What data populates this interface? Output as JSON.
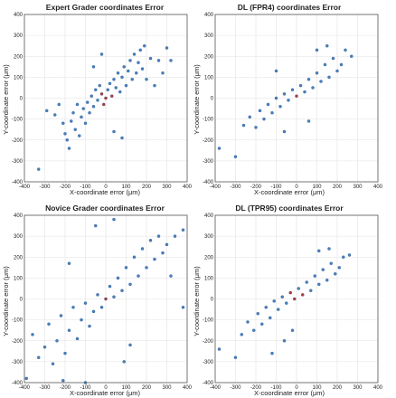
{
  "figure": {
    "colors": {
      "point": "#4a7fc1",
      "point_dense_core": "#b23a3a",
      "grid": "#e2e2e2",
      "frame": "#555555"
    }
  },
  "chart_data": [
    {
      "type": "scatter",
      "title": "Expert Grader coordinates Error",
      "xlabel": "X-coordinate error (μm)",
      "ylabel": "Y-coordinate error (μm)",
      "xlim": [
        -400,
        400
      ],
      "ylim": [
        -400,
        400
      ],
      "xticks": [
        "-400",
        "-300",
        "-200",
        "-100",
        "0",
        "100",
        "200",
        "300",
        "400"
      ],
      "yticks": [
        "-400",
        "-300",
        "-200",
        "-100",
        "0",
        "100",
        "200",
        "300",
        "400"
      ],
      "grid": true,
      "points": [
        [
          -330,
          -340
        ],
        [
          -290,
          -60
        ],
        [
          -210,
          -120
        ],
        [
          -200,
          -170
        ],
        [
          -190,
          -200
        ],
        [
          -180,
          -240
        ],
        [
          -170,
          -110
        ],
        [
          -160,
          -70
        ],
        [
          -150,
          -150
        ],
        [
          -140,
          -30
        ],
        [
          -130,
          -180
        ],
        [
          -120,
          -90
        ],
        [
          -110,
          -50
        ],
        [
          -100,
          -120
        ],
        [
          -90,
          -20
        ],
        [
          -80,
          -70
        ],
        [
          -70,
          10
        ],
        [
          -60,
          -40
        ],
        [
          -50,
          40
        ],
        [
          -40,
          -10
        ],
        [
          -30,
          60
        ],
        [
          -20,
          20
        ],
        [
          -10,
          -30
        ],
        [
          0,
          0
        ],
        [
          10,
          40
        ],
        [
          20,
          70
        ],
        [
          30,
          10
        ],
        [
          40,
          90
        ],
        [
          50,
          50
        ],
        [
          60,
          120
        ],
        [
          70,
          30
        ],
        [
          80,
          100
        ],
        [
          90,
          150
        ],
        [
          100,
          60
        ],
        [
          110,
          130
        ],
        [
          120,
          180
        ],
        [
          130,
          90
        ],
        [
          140,
          210
        ],
        [
          150,
          120
        ],
        [
          160,
          170
        ],
        [
          170,
          230
        ],
        [
          180,
          140
        ],
        [
          190,
          250
        ],
        [
          200,
          90
        ],
        [
          220,
          190
        ],
        [
          240,
          60
        ],
        [
          260,
          180
        ],
        [
          280,
          120
        ],
        [
          300,
          240
        ],
        [
          320,
          180
        ],
        [
          -250,
          -80
        ],
        [
          -230,
          -30
        ],
        [
          -60,
          150
        ],
        [
          -20,
          210
        ],
        [
          40,
          -160
        ],
        [
          80,
          -190
        ]
      ]
    },
    {
      "type": "scatter",
      "title": "DL (FPR4) coordinates Error",
      "xlabel": "X-coordinate error (μm)",
      "ylabel": "Y-coordinate error (μm)",
      "xlim": [
        -400,
        400
      ],
      "ylim": [
        -400,
        400
      ],
      "xticks": [
        "-400",
        "-300",
        "-200",
        "-100",
        "0",
        "100",
        "200",
        "300",
        "400"
      ],
      "yticks": [
        "-400",
        "-300",
        "-200",
        "-100",
        "0",
        "100",
        "200",
        "300",
        "400"
      ],
      "grid": true,
      "points": [
        [
          -380,
          -240
        ],
        [
          -300,
          -280
        ],
        [
          -260,
          -130
        ],
        [
          -230,
          -90
        ],
        [
          -200,
          -140
        ],
        [
          -180,
          -60
        ],
        [
          -160,
          -100
        ],
        [
          -140,
          -30
        ],
        [
          -120,
          -70
        ],
        [
          -100,
          0
        ],
        [
          -80,
          -40
        ],
        [
          -60,
          20
        ],
        [
          -40,
          -10
        ],
        [
          -20,
          40
        ],
        [
          0,
          10
        ],
        [
          20,
          60
        ],
        [
          40,
          30
        ],
        [
          60,
          90
        ],
        [
          80,
          50
        ],
        [
          100,
          120
        ],
        [
          120,
          80
        ],
        [
          140,
          160
        ],
        [
          160,
          100
        ],
        [
          180,
          190
        ],
        [
          200,
          130
        ],
        [
          220,
          160
        ],
        [
          240,
          230
        ],
        [
          270,
          200
        ],
        [
          -100,
          130
        ],
        [
          60,
          -110
        ],
        [
          -60,
          -160
        ],
        [
          150,
          250
        ],
        [
          100,
          230
        ]
      ]
    },
    {
      "type": "scatter",
      "title": "Novice Grader coordinates Error",
      "xlabel": "X-coordinate error (μm)",
      "ylabel": "Y-coordinate error (μm)",
      "xlim": [
        -400,
        400
      ],
      "ylim": [
        -400,
        400
      ],
      "xticks": [
        "-400",
        "-300",
        "-200",
        "-100",
        "0",
        "100",
        "200",
        "300",
        "400"
      ],
      "yticks": [
        "-400",
        "-300",
        "-200",
        "-100",
        "0",
        "100",
        "200",
        "300",
        "400"
      ],
      "grid": true,
      "points": [
        [
          -390,
          -380
        ],
        [
          -360,
          -170
        ],
        [
          -330,
          -280
        ],
        [
          -300,
          -230
        ],
        [
          -280,
          -120
        ],
        [
          -260,
          -310
        ],
        [
          -240,
          -200
        ],
        [
          -220,
          -80
        ],
        [
          -200,
          -260
        ],
        [
          -180,
          -150
        ],
        [
          -160,
          -40
        ],
        [
          -140,
          -190
        ],
        [
          -120,
          -100
        ],
        [
          -100,
          -20
        ],
        [
          -80,
          -130
        ],
        [
          -60,
          -60
        ],
        [
          -40,
          20
        ],
        [
          -20,
          -40
        ],
        [
          0,
          0
        ],
        [
          20,
          60
        ],
        [
          40,
          10
        ],
        [
          60,
          100
        ],
        [
          80,
          40
        ],
        [
          100,
          150
        ],
        [
          120,
          70
        ],
        [
          140,
          200
        ],
        [
          160,
          110
        ],
        [
          180,
          240
        ],
        [
          200,
          150
        ],
        [
          220,
          280
        ],
        [
          240,
          190
        ],
        [
          260,
          300
        ],
        [
          280,
          220
        ],
        [
          300,
          260
        ],
        [
          320,
          110
        ],
        [
          340,
          300
        ],
        [
          380,
          330
        ],
        [
          -50,
          350
        ],
        [
          40,
          380
        ],
        [
          -180,
          170
        ],
        [
          120,
          -220
        ],
        [
          -210,
          -390
        ],
        [
          -100,
          -400
        ],
        [
          90,
          -300
        ],
        [
          380,
          -40
        ]
      ]
    },
    {
      "type": "scatter",
      "title": "DL (TPR95) coordinates Error",
      "xlabel": "X-coordinate error (μm)",
      "ylabel": "Y-coordinate error (μm)",
      "xlim": [
        -400,
        400
      ],
      "ylim": [
        -400,
        400
      ],
      "xticks": [
        "-400",
        "-300",
        "-200",
        "-100",
        "0",
        "100",
        "200",
        "300",
        "400"
      ],
      "yticks": [
        "-400",
        "-300",
        "-200",
        "-100",
        "0",
        "100",
        "200",
        "300",
        "400"
      ],
      "grid": true,
      "points": [
        [
          -380,
          -240
        ],
        [
          -300,
          -280
        ],
        [
          -270,
          -170
        ],
        [
          -240,
          -110
        ],
        [
          -210,
          -150
        ],
        [
          -190,
          -70
        ],
        [
          -170,
          -120
        ],
        [
          -150,
          -40
        ],
        [
          -130,
          -90
        ],
        [
          -110,
          -10
        ],
        [
          -90,
          -50
        ],
        [
          -70,
          10
        ],
        [
          -50,
          -20
        ],
        [
          -30,
          30
        ],
        [
          -10,
          0
        ],
        [
          10,
          50
        ],
        [
          30,
          20
        ],
        [
          50,
          80
        ],
        [
          70,
          40
        ],
        [
          90,
          110
        ],
        [
          110,
          70
        ],
        [
          130,
          140
        ],
        [
          150,
          90
        ],
        [
          170,
          170
        ],
        [
          190,
          120
        ],
        [
          210,
          150
        ],
        [
          230,
          200
        ],
        [
          260,
          210
        ],
        [
          -120,
          -260
        ],
        [
          -60,
          -200
        ],
        [
          -20,
          -150
        ],
        [
          110,
          230
        ],
        [
          160,
          240
        ]
      ]
    }
  ]
}
